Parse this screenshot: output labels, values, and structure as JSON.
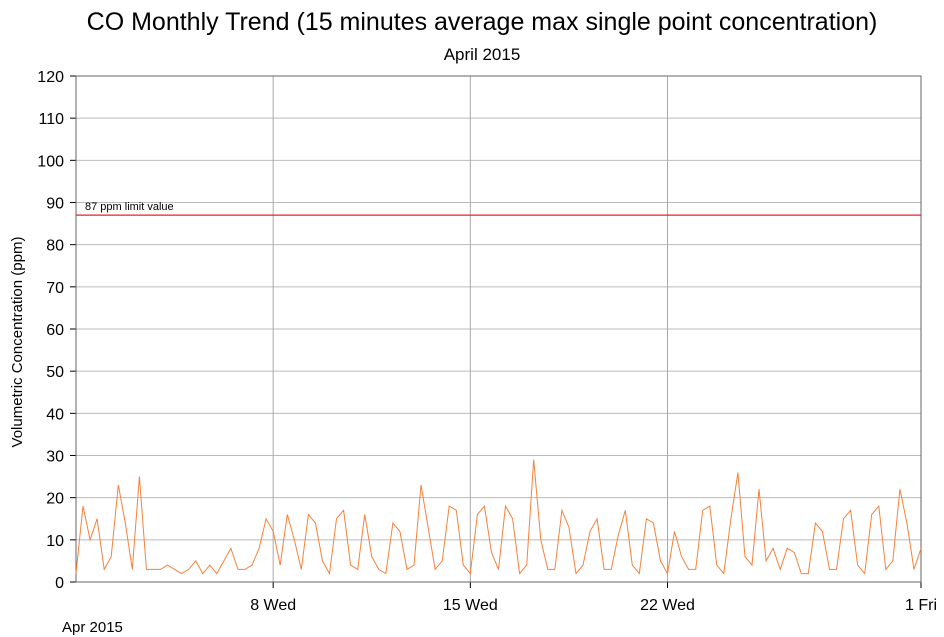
{
  "chart_data": {
    "type": "line",
    "title": "CO Monthly Trend (15 minutes average max single point concentration)",
    "subtitle": "April 2015",
    "ylabel": "Volumetric Concentration (ppm)",
    "xlabel": "Apr 2015",
    "xlim": [
      1,
      31
    ],
    "ylim": [
      0,
      120
    ],
    "xticks": [
      {
        "value": 8,
        "label": "8 Wed"
      },
      {
        "value": 15,
        "label": "15 Wed"
      },
      {
        "value": 22,
        "label": "22 Wed"
      },
      {
        "value": 31,
        "label": "1 Fri"
      }
    ],
    "yticks": [
      0,
      10,
      20,
      30,
      40,
      50,
      60,
      70,
      80,
      90,
      100,
      110,
      120
    ],
    "grid": true,
    "reference_lines": [
      {
        "value": 87,
        "label": "87 ppm limit value",
        "color": "#e8202a"
      }
    ],
    "series": [
      {
        "name": "CO",
        "color": "#f5823c",
        "x": [
          1,
          1.25,
          1.5,
          1.75,
          2,
          2.25,
          2.5,
          2.75,
          3,
          3.25,
          3.5,
          3.75,
          4,
          4.25,
          4.5,
          4.75,
          5,
          5.25,
          5.5,
          5.75,
          6,
          6.25,
          6.5,
          6.75,
          7,
          7.25,
          7.5,
          7.75,
          8,
          8.25,
          8.5,
          8.75,
          9,
          9.25,
          9.5,
          9.75,
          10,
          10.25,
          10.5,
          10.75,
          11,
          11.25,
          11.5,
          11.75,
          12,
          12.25,
          12.5,
          12.75,
          13,
          13.25,
          13.5,
          13.75,
          14,
          14.25,
          14.5,
          14.75,
          15,
          15.25,
          15.5,
          15.75,
          16,
          16.25,
          16.5,
          16.75,
          17,
          17.25,
          17.5,
          17.75,
          18,
          18.25,
          18.5,
          18.75,
          19,
          19.25,
          19.5,
          19.75,
          20,
          20.25,
          20.5,
          20.75,
          21,
          21.25,
          21.5,
          21.75,
          22,
          22.25,
          22.5,
          22.75,
          23,
          23.25,
          23.5,
          23.75,
          24,
          24.25,
          24.5,
          24.75,
          25,
          25.25,
          25.5,
          25.75,
          26,
          26.25,
          26.5,
          26.75,
          27,
          27.25,
          27.5,
          27.75,
          28,
          28.25,
          28.5,
          28.75,
          29,
          29.25,
          29.5,
          29.75,
          30,
          30.25,
          30.5,
          30.75,
          31
        ],
        "values": [
          2,
          18,
          10,
          15,
          3,
          6,
          23,
          14,
          3,
          25,
          3,
          3,
          3,
          4,
          3,
          2,
          3,
          5,
          2,
          4,
          2,
          5,
          8,
          3,
          3,
          4,
          8,
          15,
          12,
          4,
          16,
          10,
          3,
          16,
          14,
          5,
          2,
          15,
          17,
          4,
          3,
          16,
          6,
          3,
          2,
          14,
          12,
          3,
          4,
          23,
          13,
          3,
          5,
          18,
          17,
          4,
          2,
          16,
          18,
          7,
          3,
          18,
          15,
          2,
          4,
          29,
          10,
          3,
          3,
          17,
          13,
          2,
          4,
          12,
          15,
          3,
          3,
          11,
          17,
          4,
          2,
          15,
          14,
          5,
          2,
          12,
          6,
          3,
          3,
          17,
          18,
          4,
          2,
          15,
          26,
          6,
          4,
          22,
          5,
          8,
          3,
          8,
          7,
          2,
          2,
          14,
          12,
          3,
          3,
          15,
          17,
          4,
          2,
          16,
          18,
          3,
          5,
          22,
          14,
          3,
          8
        ]
      }
    ]
  }
}
